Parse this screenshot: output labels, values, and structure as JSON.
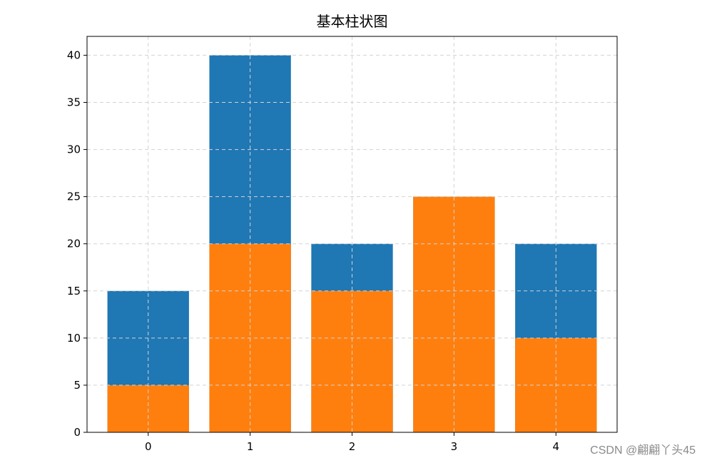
{
  "chart_data": {
    "type": "bar",
    "title": "基本柱状图",
    "xlabel": "",
    "ylabel": "",
    "categories": [
      "0",
      "1",
      "2",
      "3",
      "4"
    ],
    "series": [
      {
        "values": [
          15,
          40,
          20,
          25,
          20
        ],
        "color": "#1f77b4"
      },
      {
        "values": [
          5,
          20,
          15,
          25,
          10
        ],
        "color": "#ff7f0e"
      }
    ],
    "overlay": true,
    "ylim": [
      0,
      42
    ],
    "xlim": [
      -0.6,
      4.6
    ],
    "yticks": [
      0,
      5,
      10,
      15,
      20,
      25,
      30,
      35,
      40
    ],
    "grid": true,
    "grid_style": "dashed",
    "grid_color": "#d3d3d3"
  },
  "watermark": "CSDN @翩翩丫头45"
}
